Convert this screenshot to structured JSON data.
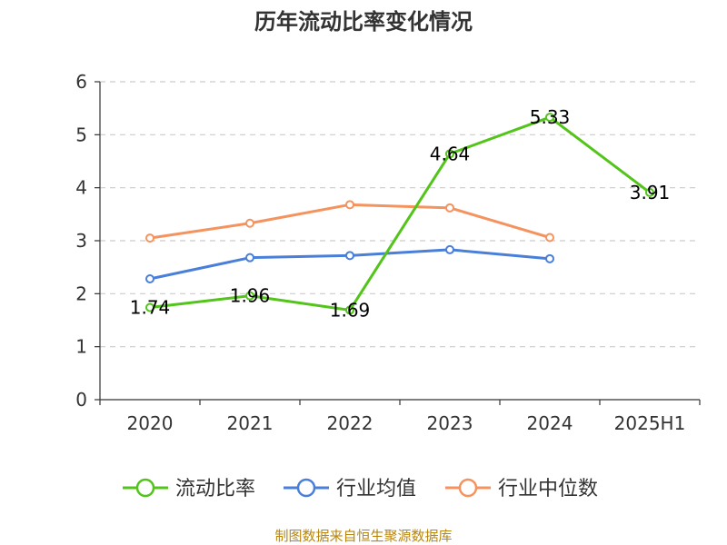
{
  "chart_data": {
    "type": "line",
    "title": "历年流动比率变化情况",
    "categories": [
      "2020",
      "2021",
      "2022",
      "2023",
      "2024",
      "2025H1"
    ],
    "ylim": [
      0,
      6
    ],
    "yticks": [
      "0",
      "1",
      "2",
      "3",
      "4",
      "5",
      "6"
    ],
    "grid": true,
    "legend_position": "bottom",
    "series": [
      {
        "name": "流动比率",
        "color": "#52c41a",
        "values": [
          1.74,
          1.96,
          1.69,
          4.64,
          5.33,
          3.91
        ],
        "labels": [
          "1.74",
          "1.96",
          "1.69",
          "4.64",
          "5.33",
          "3.91"
        ]
      },
      {
        "name": "行业均值",
        "color": "#4a7fd9",
        "values": [
          2.28,
          2.68,
          2.72,
          2.83,
          2.66,
          null
        ]
      },
      {
        "name": "行业中位数",
        "color": "#f5935f",
        "values": [
          3.05,
          3.33,
          3.68,
          3.62,
          3.06,
          null
        ]
      }
    ]
  },
  "source_note": "制图数据来自恒生聚源数据库"
}
